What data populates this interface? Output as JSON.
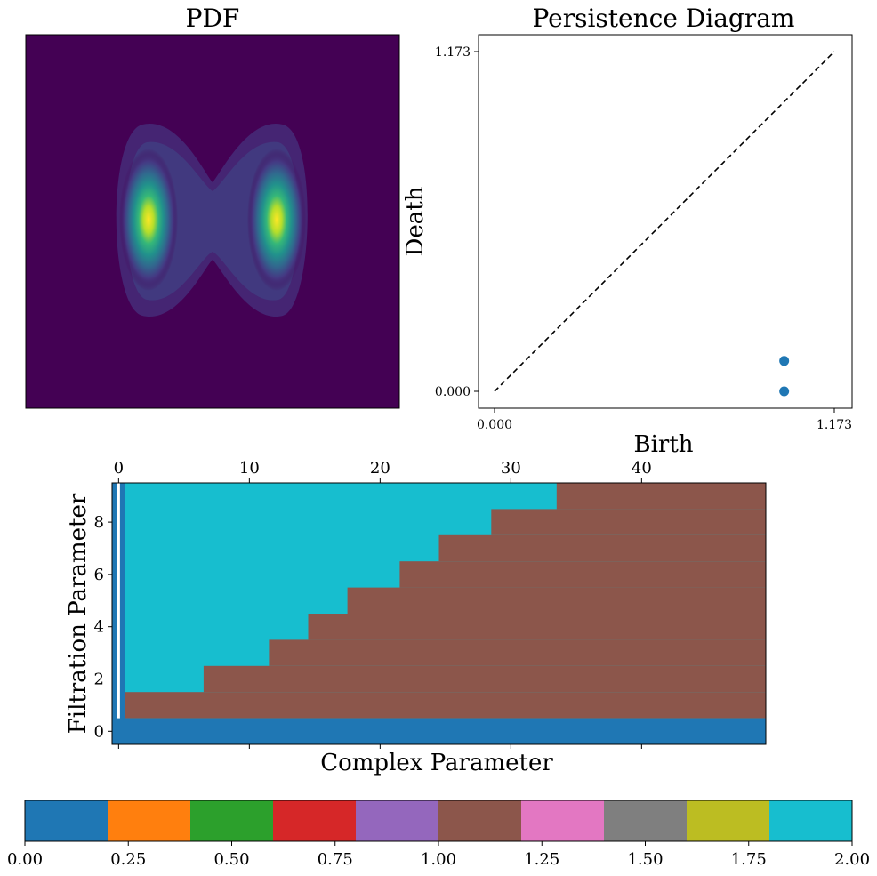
{
  "colors": {
    "tab10": [
      "#1f77b4",
      "#ff7f0e",
      "#2ca02c",
      "#d62728",
      "#9467bd",
      "#8c564b",
      "#e377c2",
      "#7f7f7f",
      "#bcbd22",
      "#17becf"
    ],
    "viridis_bg": "#440154",
    "diag_line": "#000000",
    "point": "#1f77b4"
  },
  "chart_data": [
    {
      "type": "heatmap",
      "title": "PDF",
      "description_values": {
        "modes": [
          {
            "label": "left",
            "peak": 1.0
          },
          {
            "label": "right",
            "peak": 1.0
          }
        ],
        "colormap": "viridis",
        "axes_visible": false
      }
    },
    {
      "type": "scatter",
      "title": "Persistence Diagram",
      "xlabel": "Birth",
      "ylabel": "Death",
      "xlim": [
        0.0,
        1.173
      ],
      "ylim": [
        0.0,
        1.173
      ],
      "xticks": [
        "0.000",
        "1.173"
      ],
      "yticks": [
        "0.000",
        "1.173"
      ],
      "diagonal": {
        "style": "dashed",
        "from": [
          0.0,
          0.0
        ],
        "to": [
          1.173,
          1.173
        ]
      },
      "points": [
        {
          "x": 1.0,
          "y": 0.0
        },
        {
          "x": 1.0,
          "y": 0.105
        }
      ]
    },
    {
      "type": "heatmap",
      "xlabel": "Complex Parameter",
      "ylabel": "Filtration Parameter",
      "xlim": [
        -0.5,
        49.5
      ],
      "ylim": [
        -0.5,
        9.5
      ],
      "xticks_top": [
        0,
        10,
        20,
        30,
        40
      ],
      "xtick_labels_top": [
        "0",
        "10",
        "20",
        "30",
        "40"
      ],
      "yticks": [
        0,
        2,
        4,
        6,
        8
      ],
      "ytick_labels": [
        "0",
        "2",
        "4",
        "6",
        "8"
      ],
      "value_legend": {
        "blue": 0.0,
        "brown": 1.0,
        "cyan": 2.0
      },
      "column0_value": 0.0,
      "row0_value": 0.0,
      "column1_value_above_row0": 2.0,
      "brown_start_column_by_row": [
        {
          "row": 1,
          "start_col": 0.5
        },
        {
          "row": 2,
          "start_col": 6.5
        },
        {
          "row": 3,
          "start_col": 11.5
        },
        {
          "row": 4,
          "start_col": 14.5
        },
        {
          "row": 5,
          "start_col": 17.5
        },
        {
          "row": 6,
          "start_col": 21.5
        },
        {
          "row": 7,
          "start_col": 24.5
        },
        {
          "row": 8,
          "start_col": 28.5
        },
        {
          "row": 9,
          "start_col": 33.5
        }
      ]
    },
    {
      "type": "colorbar",
      "range": [
        0.0,
        2.0
      ],
      "ticks": [
        "0.00",
        "0.25",
        "0.50",
        "0.75",
        "1.00",
        "1.25",
        "1.50",
        "1.75",
        "2.00"
      ],
      "n_colors": 10
    }
  ]
}
